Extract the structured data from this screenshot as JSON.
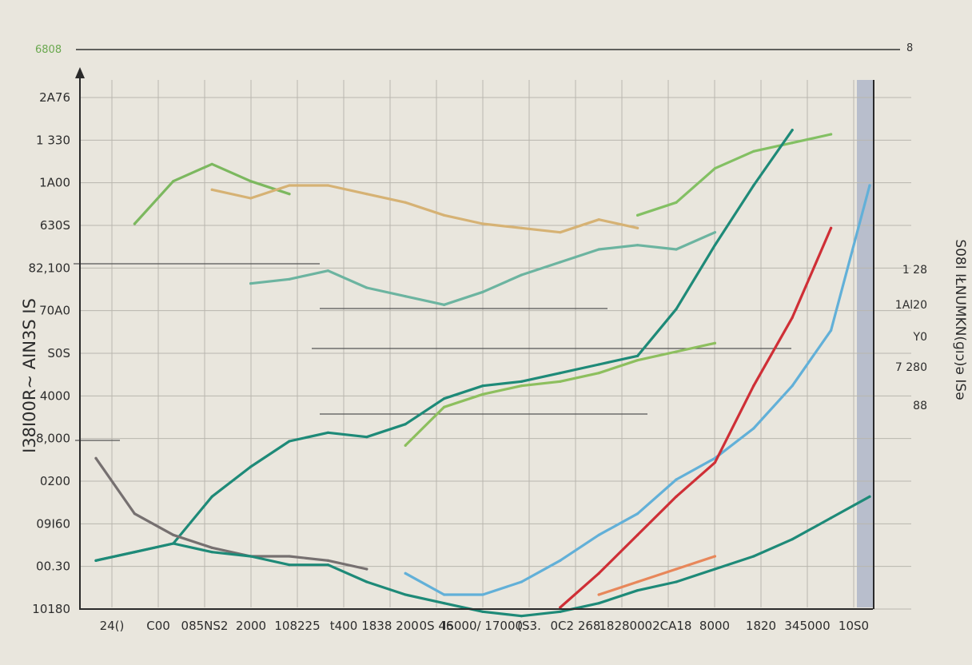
{
  "chart_data": {
    "type": "line",
    "title": "",
    "top_left_label": "6808",
    "top_right_label": "8",
    "ylabel": "I38I00R~ AIN3S IS",
    "right_label": "S08I IŁNUMKN(ɡıɔ)ǝ ISǝ",
    "y_tick_labels": [
      "2A76",
      "1 330",
      "1A00",
      "630S",
      "82,100",
      "70A0",
      "S0S",
      "4000",
      "8,000",
      "0200",
      "09I60",
      "00.30",
      "10180"
    ],
    "x_tick_labels": [
      "24()",
      "C00",
      "085NS2",
      "2000",
      "108225",
      "t400",
      "1838 200",
      "0S 46",
      "IS000/ 17000",
      "(S3.",
      "0C2 268",
      "182800",
      "02CA18",
      "8000",
      "1820",
      "345000",
      "10S0"
    ],
    "right_tick_labels": [
      "1 28",
      "1Al20",
      "Y0",
      "7 280",
      "88"
    ],
    "x": [
      0,
      1,
      2,
      3,
      4,
      5,
      6,
      7,
      8,
      9,
      10,
      11,
      12,
      13,
      14,
      15,
      16,
      17,
      18,
      19,
      20
    ],
    "xlim": [
      0,
      20
    ],
    "ylim": [
      0,
      12
    ],
    "grid": true,
    "legend": "none",
    "series": [
      {
        "color": "#7cb85f",
        "values": [
          null,
          9,
          10,
          10.4,
          10,
          9.7,
          null,
          null,
          null,
          null,
          null,
          null,
          null,
          null,
          null,
          null,
          null,
          null,
          null,
          null,
          null
        ]
      },
      {
        "color": "#d6b274",
        "values": [
          null,
          null,
          null,
          9.8,
          9.6,
          9.9,
          9.9,
          9.7,
          9.5,
          9.2,
          9,
          8.9,
          8.8,
          9.1,
          8.9,
          null,
          null,
          null,
          null,
          null,
          null
        ]
      },
      {
        "color": "#83c063",
        "values": [
          null,
          null,
          null,
          null,
          null,
          null,
          null,
          null,
          null,
          null,
          null,
          null,
          null,
          null,
          9.2,
          9.5,
          10.3,
          10.7,
          10.9,
          11.1,
          null
        ]
      },
      {
        "color": "#6cb4a0",
        "values": [
          null,
          null,
          null,
          null,
          7.6,
          7.7,
          7.9,
          7.5,
          7.3,
          7.1,
          7.4,
          7.8,
          8.1,
          8.4,
          8.5,
          8.4,
          8.8,
          null,
          null,
          null,
          null
        ]
      },
      {
        "color": "#1e8a78",
        "values": [
          1.1,
          1.3,
          1.5,
          2.6,
          3.3,
          3.9,
          4.1,
          4.0,
          4.3,
          4.9,
          5.2,
          5.3,
          5.5,
          5.7,
          5.9,
          7.0,
          8.5,
          9.9,
          11.2,
          null,
          null
        ]
      },
      {
        "color": "#8dbf5e",
        "values": [
          null,
          null,
          null,
          null,
          null,
          null,
          null,
          null,
          3.8,
          4.7,
          5.0,
          5.2,
          5.3,
          5.5,
          5.8,
          6.0,
          6.2,
          null,
          null,
          null,
          null
        ]
      },
      {
        "color": "#767070",
        "values": [
          3.5,
          2.2,
          1.7,
          1.4,
          1.2,
          1.2,
          1.1,
          0.9,
          null,
          null,
          null,
          null,
          null,
          null,
          null,
          null,
          null,
          null,
          null,
          null,
          null
        ]
      },
      {
        "color": "#1e8a78",
        "values": [
          1.1,
          1.3,
          1.5,
          1.3,
          1.2,
          1.0,
          1.0,
          0.6,
          0.3,
          0.1,
          -0.1,
          -0.2,
          -0.1,
          0.1,
          0.4,
          0.6,
          0.9,
          1.2,
          1.6,
          2.1,
          2.6
        ]
      },
      {
        "color": "#62b0d8",
        "values": [
          null,
          null,
          null,
          null,
          null,
          null,
          null,
          null,
          0.8,
          0.3,
          0.3,
          0.6,
          1.1,
          1.7,
          2.2,
          3.0,
          3.5,
          4.2,
          5.2,
          6.5,
          9.9
        ]
      },
      {
        "color": "#cf2f36",
        "values": [
          null,
          null,
          null,
          null,
          null,
          null,
          null,
          null,
          null,
          null,
          null,
          null,
          0,
          0.8,
          1.7,
          2.6,
          3.4,
          5.2,
          6.8,
          8.9,
          null
        ]
      },
      {
        "color": "#e8875a",
        "values": [
          null,
          null,
          null,
          null,
          null,
          null,
          null,
          null,
          null,
          null,
          null,
          null,
          null,
          0.3,
          0.6,
          0.9,
          1.2,
          null,
          null,
          null,
          null
        ]
      }
    ]
  }
}
